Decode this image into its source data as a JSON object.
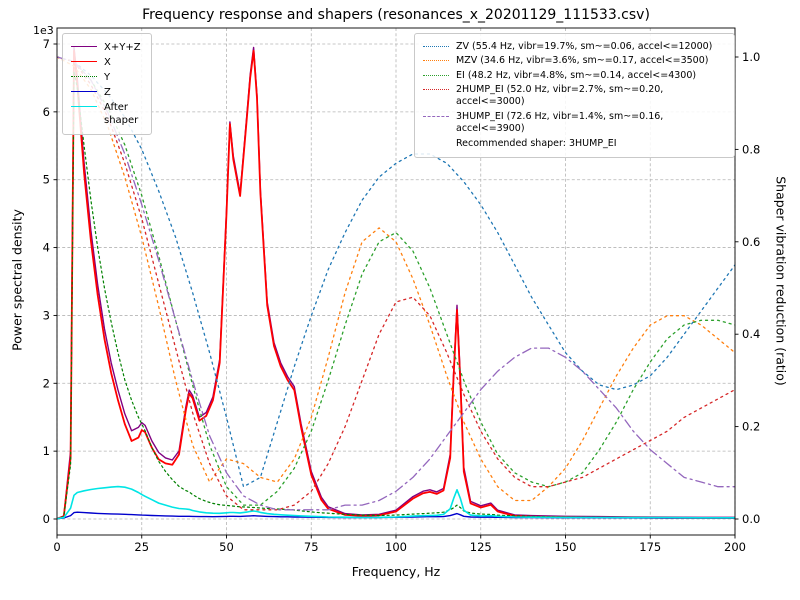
{
  "chart_data": {
    "type": "line",
    "title": "Frequency response and shapers (resonances_x_20201129_111533.csv)",
    "axes": {
      "x": {
        "label": "Frequency, Hz",
        "min": 0,
        "max": 200,
        "tick_values": [
          0,
          25,
          50,
          75,
          100,
          125,
          150,
          175,
          200
        ],
        "tick_labels": [
          "0",
          "25",
          "50",
          "75",
          "100",
          "125",
          "150",
          "175",
          "200"
        ]
      },
      "y_left": {
        "label": "Power spectral density",
        "offset_text": "1e3",
        "min": 0,
        "max": 7000,
        "tick_values": [
          0,
          1000,
          2000,
          3000,
          4000,
          5000,
          6000,
          7000
        ],
        "tick_labels": [
          "0",
          "1",
          "2",
          "3",
          "4",
          "5",
          "6",
          "7"
        ]
      },
      "y_right": {
        "label": "Shaper vibration reduction (ratio)",
        "min": 0,
        "max": 1.0,
        "tick_values": [
          0,
          0.2,
          0.4,
          0.6,
          0.8,
          1.0
        ],
        "tick_labels": [
          "0.0",
          "0.2",
          "0.4",
          "0.6",
          "0.8",
          "1.0"
        ]
      }
    },
    "grid": true,
    "recommended_note": "Recommended shaper: 3HUMP_EI",
    "freq_psd": [
      0,
      2,
      4,
      5,
      6,
      8,
      10,
      12,
      14,
      16,
      18,
      20,
      22,
      24,
      25,
      26,
      28,
      30,
      32,
      34,
      36,
      38,
      39,
      40,
      42,
      44,
      46,
      48,
      50,
      51,
      52,
      54,
      56,
      57,
      58,
      59,
      60,
      62,
      64,
      66,
      68,
      70,
      72,
      75,
      78,
      80,
      85,
      90,
      95,
      100,
      105,
      108,
      110,
      112,
      114,
      116,
      117,
      118,
      119,
      120,
      122,
      125,
      128,
      130,
      135,
      140,
      150,
      160,
      170,
      180,
      190,
      200
    ],
    "freq_shaper": [
      0,
      5,
      10,
      15,
      20,
      25,
      30,
      35,
      40,
      45,
      50,
      55,
      60,
      65,
      70,
      75,
      80,
      85,
      90,
      95,
      100,
      105,
      110,
      115,
      120,
      125,
      130,
      135,
      140,
      145,
      150,
      155,
      160,
      165,
      170,
      175,
      180,
      185,
      190,
      195,
      200
    ],
    "series": [
      {
        "id": "xyz",
        "name": "X+Y+Z",
        "axis": "left",
        "freq": "psd",
        "color": "#800080",
        "width": 1.4,
        "dash": null,
        "legend_style": "solid",
        "values": [
          5,
          45,
          1000,
          6950,
          6500,
          5250,
          4250,
          3450,
          2800,
          2300,
          1900,
          1550,
          1300,
          1350,
          1420,
          1380,
          1150,
          980,
          900,
          870,
          1000,
          1650,
          1900,
          1820,
          1500,
          1570,
          1800,
          2350,
          4550,
          5850,
          5350,
          4800,
          5950,
          6550,
          6950,
          6250,
          4850,
          3200,
          2600,
          2300,
          2100,
          1950,
          1400,
          700,
          320,
          180,
          80,
          60,
          70,
          130,
          330,
          410,
          430,
          400,
          450,
          950,
          2150,
          3150,
          2080,
          760,
          260,
          195,
          235,
          130,
          60,
          50,
          40,
          35,
          30,
          28,
          25,
          25
        ]
      },
      {
        "id": "x",
        "name": "X",
        "axis": "left",
        "freq": "psd",
        "color": "#ff0000",
        "width": 1.8,
        "dash": null,
        "legend_style": "solid",
        "values": [
          5,
          40,
          900,
          6900,
          6400,
          5100,
          4100,
          3300,
          2650,
          2150,
          1750,
          1400,
          1150,
          1200,
          1310,
          1280,
          1050,
          880,
          820,
          800,
          950,
          1600,
          1850,
          1780,
          1450,
          1520,
          1750,
          2300,
          4500,
          5820,
          5300,
          4760,
          5900,
          6500,
          6900,
          6200,
          4800,
          3150,
          2550,
          2250,
          2050,
          1900,
          1350,
          650,
          280,
          150,
          60,
          45,
          55,
          110,
          300,
          380,
          400,
          370,
          420,
          900,
          2100,
          3080,
          2000,
          700,
          230,
          170,
          210,
          110,
          45,
          35,
          28,
          22,
          20,
          18,
          15,
          15
        ]
      },
      {
        "id": "y",
        "name": "Y",
        "axis": "left",
        "freq": "psd",
        "color": "#008000",
        "width": 1.2,
        "dash": "2 3",
        "legend_style": "dotted",
        "values": [
          5,
          35,
          800,
          6600,
          6350,
          5500,
          4700,
          4000,
          3400,
          2900,
          2450,
          2050,
          1750,
          1500,
          1400,
          1300,
          1050,
          850,
          700,
          580,
          480,
          420,
          400,
          360,
          300,
          260,
          230,
          210,
          200,
          195,
          190,
          180,
          175,
          172,
          170,
          166,
          162,
          155,
          150,
          145,
          140,
          132,
          120,
          105,
          92,
          85,
          68,
          58,
          52,
          58,
          72,
          80,
          85,
          92,
          100,
          135,
          165,
          205,
          168,
          118,
          88,
          72,
          68,
          58,
          45,
          38,
          30,
          25,
          22,
          20,
          17,
          15
        ]
      },
      {
        "id": "z",
        "name": "Z",
        "axis": "left",
        "freq": "psd",
        "color": "#0000cc",
        "width": 1.4,
        "dash": null,
        "legend_style": "solid",
        "values": [
          5,
          15,
          50,
          95,
          100,
          95,
          88,
          82,
          78,
          75,
          72,
          70,
          65,
          60,
          58,
          56,
          52,
          48,
          45,
          42,
          40,
          40,
          40,
          38,
          36,
          35,
          34,
          35,
          38,
          40,
          40,
          38,
          42,
          45,
          48,
          45,
          42,
          38,
          35,
          33,
          32,
          30,
          28,
          26,
          25,
          24,
          22,
          22,
          22,
          25,
          30,
          33,
          35,
          34,
          36,
          50,
          65,
          80,
          62,
          40,
          30,
          27,
          27,
          25,
          22,
          20,
          18,
          17,
          16,
          15,
          14,
          14
        ]
      },
      {
        "id": "after",
        "name": "After shaper",
        "axis": "left",
        "freq": "psd",
        "color": "#00e5e5",
        "width": 1.6,
        "dash": null,
        "legend_style": "solid",
        "values": [
          5,
          20,
          160,
          350,
          390,
          415,
          435,
          450,
          460,
          470,
          478,
          468,
          440,
          390,
          360,
          335,
          285,
          235,
          205,
          175,
          155,
          148,
          142,
          125,
          105,
          92,
          86,
          84,
          92,
          96,
          96,
          90,
          102,
          112,
          118,
          110,
          98,
          80,
          70,
          62,
          56,
          52,
          46,
          40,
          34,
          30,
          26,
          24,
          24,
          30,
          42,
          48,
          52,
          55,
          68,
          150,
          300,
          430,
          300,
          130,
          58,
          46,
          48,
          40,
          30,
          27,
          24,
          22,
          20,
          20,
          18,
          18
        ]
      },
      {
        "id": "zv",
        "name": "ZV (55.4 Hz, vibr=19.7%, sm~=0.06, accel<=12000)",
        "axis": "right",
        "freq": "shaper",
        "color": "#1f77b4",
        "width": 1.3,
        "dash": "2 4",
        "legend_style": "dotted",
        "values": [
          1.0,
          0.99,
          0.96,
          0.92,
          0.87,
          0.8,
          0.71,
          0.61,
          0.49,
          0.36,
          0.22,
          0.07,
          0.09,
          0.21,
          0.33,
          0.44,
          0.54,
          0.62,
          0.69,
          0.74,
          0.77,
          0.79,
          0.79,
          0.77,
          0.73,
          0.68,
          0.62,
          0.55,
          0.48,
          0.42,
          0.36,
          0.32,
          0.29,
          0.28,
          0.29,
          0.31,
          0.35,
          0.4,
          0.45,
          0.5,
          0.55
        ]
      },
      {
        "id": "mzv",
        "name": "MZV (34.6 Hz, vibr=3.6%, sm~=0.17, accel<=3500)",
        "axis": "right",
        "freq": "shaper",
        "color": "#ff7f0e",
        "width": 1.3,
        "dash": "2 4",
        "legend_style": "dotted",
        "values": [
          1.0,
          0.98,
          0.93,
          0.85,
          0.74,
          0.61,
          0.46,
          0.3,
          0.16,
          0.08,
          0.13,
          0.12,
          0.09,
          0.08,
          0.13,
          0.22,
          0.35,
          0.49,
          0.6,
          0.63,
          0.6,
          0.52,
          0.42,
          0.31,
          0.21,
          0.13,
          0.07,
          0.04,
          0.04,
          0.07,
          0.11,
          0.17,
          0.24,
          0.31,
          0.37,
          0.42,
          0.44,
          0.44,
          0.42,
          0.39,
          0.36
        ]
      },
      {
        "id": "ei",
        "name": "EI (48.2 Hz, vibr=4.8%, sm~=0.14, accel<=4300)",
        "axis": "right",
        "freq": "shaper",
        "color": "#2ca02c",
        "width": 1.3,
        "dash": "2 4",
        "legend_style": "dotted",
        "values": [
          1.0,
          0.99,
          0.95,
          0.89,
          0.81,
          0.7,
          0.57,
          0.43,
          0.29,
          0.16,
          0.07,
          0.03,
          0.03,
          0.06,
          0.11,
          0.19,
          0.3,
          0.42,
          0.53,
          0.6,
          0.62,
          0.58,
          0.5,
          0.4,
          0.3,
          0.21,
          0.14,
          0.1,
          0.08,
          0.07,
          0.08,
          0.1,
          0.15,
          0.21,
          0.28,
          0.34,
          0.39,
          0.42,
          0.43,
          0.43,
          0.42
        ]
      },
      {
        "id": "2hump_ei",
        "name": "2HUMP_EI (52.0 Hz, vibr=2.7%, sm~=0.20, accel<=3000)",
        "axis": "right",
        "freq": "shaper",
        "color": "#d62728",
        "width": 1.3,
        "dash": "2 4",
        "legend_style": "dotted",
        "values": [
          1.0,
          0.99,
          0.94,
          0.87,
          0.77,
          0.65,
          0.51,
          0.37,
          0.23,
          0.12,
          0.05,
          0.02,
          0.02,
          0.02,
          0.03,
          0.06,
          0.12,
          0.2,
          0.3,
          0.4,
          0.47,
          0.48,
          0.44,
          0.36,
          0.27,
          0.19,
          0.13,
          0.09,
          0.07,
          0.07,
          0.08,
          0.09,
          0.11,
          0.13,
          0.15,
          0.17,
          0.19,
          0.22,
          0.24,
          0.26,
          0.28
        ]
      },
      {
        "id": "3hump_ei",
        "name": "3HUMP_EI (72.6 Hz, vibr=1.4%, sm~=0.16, accel<=3900)",
        "axis": "right",
        "freq": "shaper",
        "color": "#9467bd",
        "width": 1.3,
        "dash": "9 4 2 4",
        "legend_style": "dashed",
        "values": [
          1.0,
          0.99,
          0.95,
          0.88,
          0.79,
          0.68,
          0.56,
          0.43,
          0.3,
          0.18,
          0.1,
          0.05,
          0.03,
          0.02,
          0.02,
          0.02,
          0.02,
          0.03,
          0.03,
          0.04,
          0.06,
          0.09,
          0.13,
          0.18,
          0.23,
          0.28,
          0.32,
          0.35,
          0.37,
          0.37,
          0.35,
          0.32,
          0.28,
          0.24,
          0.19,
          0.15,
          0.12,
          0.09,
          0.08,
          0.07,
          0.07
        ]
      }
    ]
  }
}
